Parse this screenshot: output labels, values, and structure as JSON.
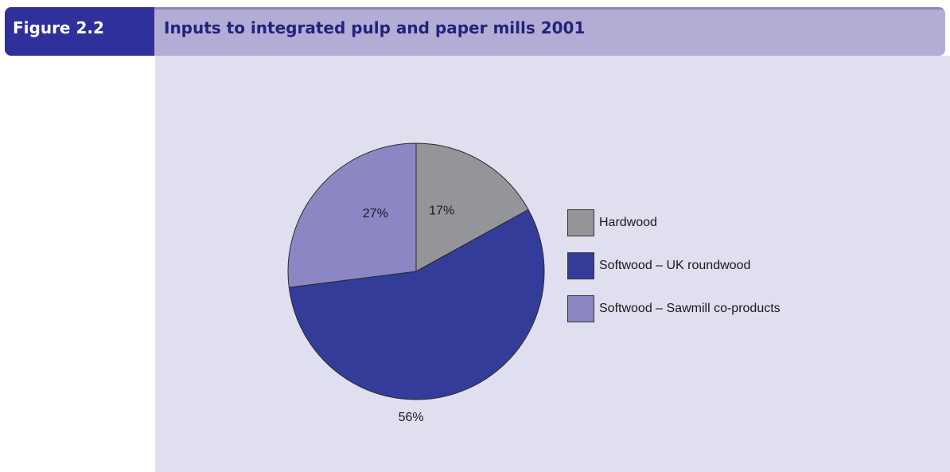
{
  "header": {
    "figure_label": "Figure 2.2",
    "title": "Inputs to integrated pulp and paper mills 2001"
  },
  "colors": {
    "header_bar": "#b3add5",
    "figure_label_bg": "#30309a",
    "panel_bg": "#e0dff0"
  },
  "chart_data": {
    "type": "pie",
    "title": "Inputs to integrated pulp and paper mills 2001",
    "start_angle_deg": 0,
    "direction": "clockwise",
    "legend_position": "right",
    "slices": [
      {
        "name": "Hardwood",
        "value": 17,
        "label": "17%",
        "color": "#939598"
      },
      {
        "name": "Softwood – UK roundwood",
        "value": 56,
        "label": "56%",
        "color": "#333d99"
      },
      {
        "name": "Softwood – Sawmill co-products",
        "value": 27,
        "label": "27%",
        "color": "#8b87c5"
      }
    ]
  }
}
